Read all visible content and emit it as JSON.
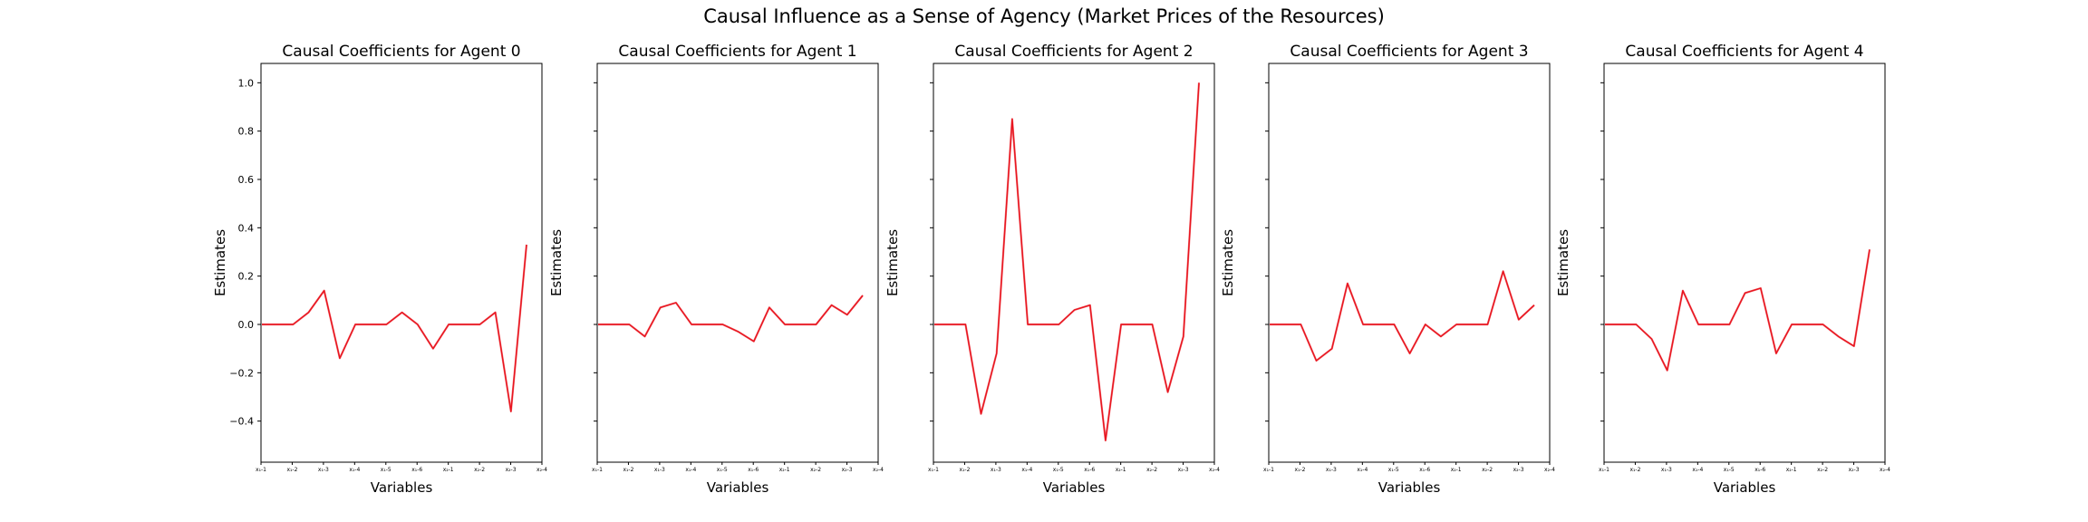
{
  "figure": {
    "title": "Causal Influence as a Sense of Agency (Market Prices of the Resources)"
  },
  "chart_data": [
    {
      "type": "line",
      "title": "Causal Coefficients for Agent 0",
      "xlabel": "Variables",
      "ylabel": "Estimates",
      "ylim": [
        -0.57,
        1.08
      ],
      "yticks": [
        -0.4,
        -0.2,
        0.0,
        0.2,
        0.4,
        0.6,
        0.8,
        1.0
      ],
      "yticklabels": [
        "−0.4",
        "−0.2",
        "0.0",
        "0.2",
        "0.4",
        "0.6",
        "0.8",
        "1.0"
      ],
      "xticklabels": [
        "x₁-1",
        "x₁-2",
        "x₁-3",
        "x₁-4",
        "x₁-5",
        "x₁-6",
        "x₂-1",
        "x₂-2",
        "x₂-3",
        "x₂-4"
      ],
      "line_color": "#e8141e",
      "series": [
        {
          "values": [
            0.0,
            0.0,
            0.0,
            0.05,
            0.14,
            -0.14,
            0.0,
            0.0,
            0.0,
            0.05,
            0.0,
            -0.1,
            0.0,
            0.0,
            0.0,
            0.05,
            -0.36,
            0.33
          ]
        }
      ]
    },
    {
      "type": "line",
      "title": "Causal Coefficients for Agent 1",
      "xlabel": "Variables",
      "ylabel": "Estimates",
      "ylim": [
        -0.57,
        1.08
      ],
      "yticks": [
        -0.4,
        -0.2,
        0.0,
        0.2,
        0.4,
        0.6,
        0.8,
        1.0
      ],
      "xticklabels": [
        "x₁-1",
        "x₁-2",
        "x₁-3",
        "x₁-4",
        "x₁-5",
        "x₁-6",
        "x₂-1",
        "x₂-2",
        "x₂-3",
        "x₂-4"
      ],
      "line_color": "#e8141e",
      "series": [
        {
          "values": [
            0.0,
            0.0,
            0.0,
            -0.05,
            0.07,
            0.09,
            0.0,
            0.0,
            0.0,
            -0.03,
            -0.07,
            0.07,
            0.0,
            0.0,
            0.0,
            0.08,
            0.04,
            0.12
          ]
        }
      ]
    },
    {
      "type": "line",
      "title": "Causal Coefficients for Agent 2",
      "xlabel": "Variables",
      "ylabel": "Estimates",
      "ylim": [
        -0.57,
        1.08
      ],
      "yticks": [
        -0.4,
        -0.2,
        0.0,
        0.2,
        0.4,
        0.6,
        0.8,
        1.0
      ],
      "xticklabels": [
        "x₁-1",
        "x₁-2",
        "x₁-3",
        "x₁-4",
        "x₁-5",
        "x₁-6",
        "x₂-1",
        "x₂-2",
        "x₂-3",
        "x₂-4"
      ],
      "line_color": "#e8141e",
      "series": [
        {
          "values": [
            0.0,
            0.0,
            0.0,
            -0.37,
            -0.12,
            0.85,
            0.0,
            0.0,
            0.0,
            0.06,
            0.08,
            -0.48,
            0.0,
            0.0,
            0.0,
            -0.28,
            -0.05,
            1.0
          ]
        }
      ]
    },
    {
      "type": "line",
      "title": "Causal Coefficients for Agent 3",
      "xlabel": "Variables",
      "ylabel": "Estimates",
      "ylim": [
        -0.57,
        1.08
      ],
      "yticks": [
        -0.4,
        -0.2,
        0.0,
        0.2,
        0.4,
        0.6,
        0.8,
        1.0
      ],
      "xticklabels": [
        "x₁-1",
        "x₁-2",
        "x₁-3",
        "x₁-4",
        "x₁-5",
        "x₁-6",
        "x₂-1",
        "x₂-2",
        "x₂-3",
        "x₂-4"
      ],
      "line_color": "#e8141e",
      "series": [
        {
          "values": [
            0.0,
            0.0,
            0.0,
            -0.15,
            -0.1,
            0.17,
            0.0,
            0.0,
            0.0,
            -0.12,
            0.0,
            -0.05,
            0.0,
            0.0,
            0.0,
            0.22,
            0.02,
            0.08
          ]
        }
      ]
    },
    {
      "type": "line",
      "title": "Causal Coefficients for Agent 4",
      "xlabel": "Variables",
      "ylabel": "Estimates",
      "ylim": [
        -0.57,
        1.08
      ],
      "yticks": [
        -0.4,
        -0.2,
        0.0,
        0.2,
        0.4,
        0.6,
        0.8,
        1.0
      ],
      "xticklabels": [
        "x₁-1",
        "x₁-2",
        "x₁-3",
        "x₁-4",
        "x₁-5",
        "x₁-6",
        "x₂-1",
        "x₂-2",
        "x₂-3",
        "x₂-4"
      ],
      "line_color": "#e8141e",
      "series": [
        {
          "values": [
            0.0,
            0.0,
            0.0,
            -0.06,
            -0.19,
            0.14,
            0.0,
            0.0,
            0.0,
            0.13,
            0.15,
            -0.12,
            0.0,
            0.0,
            0.0,
            -0.05,
            -0.09,
            0.31
          ]
        }
      ]
    }
  ]
}
